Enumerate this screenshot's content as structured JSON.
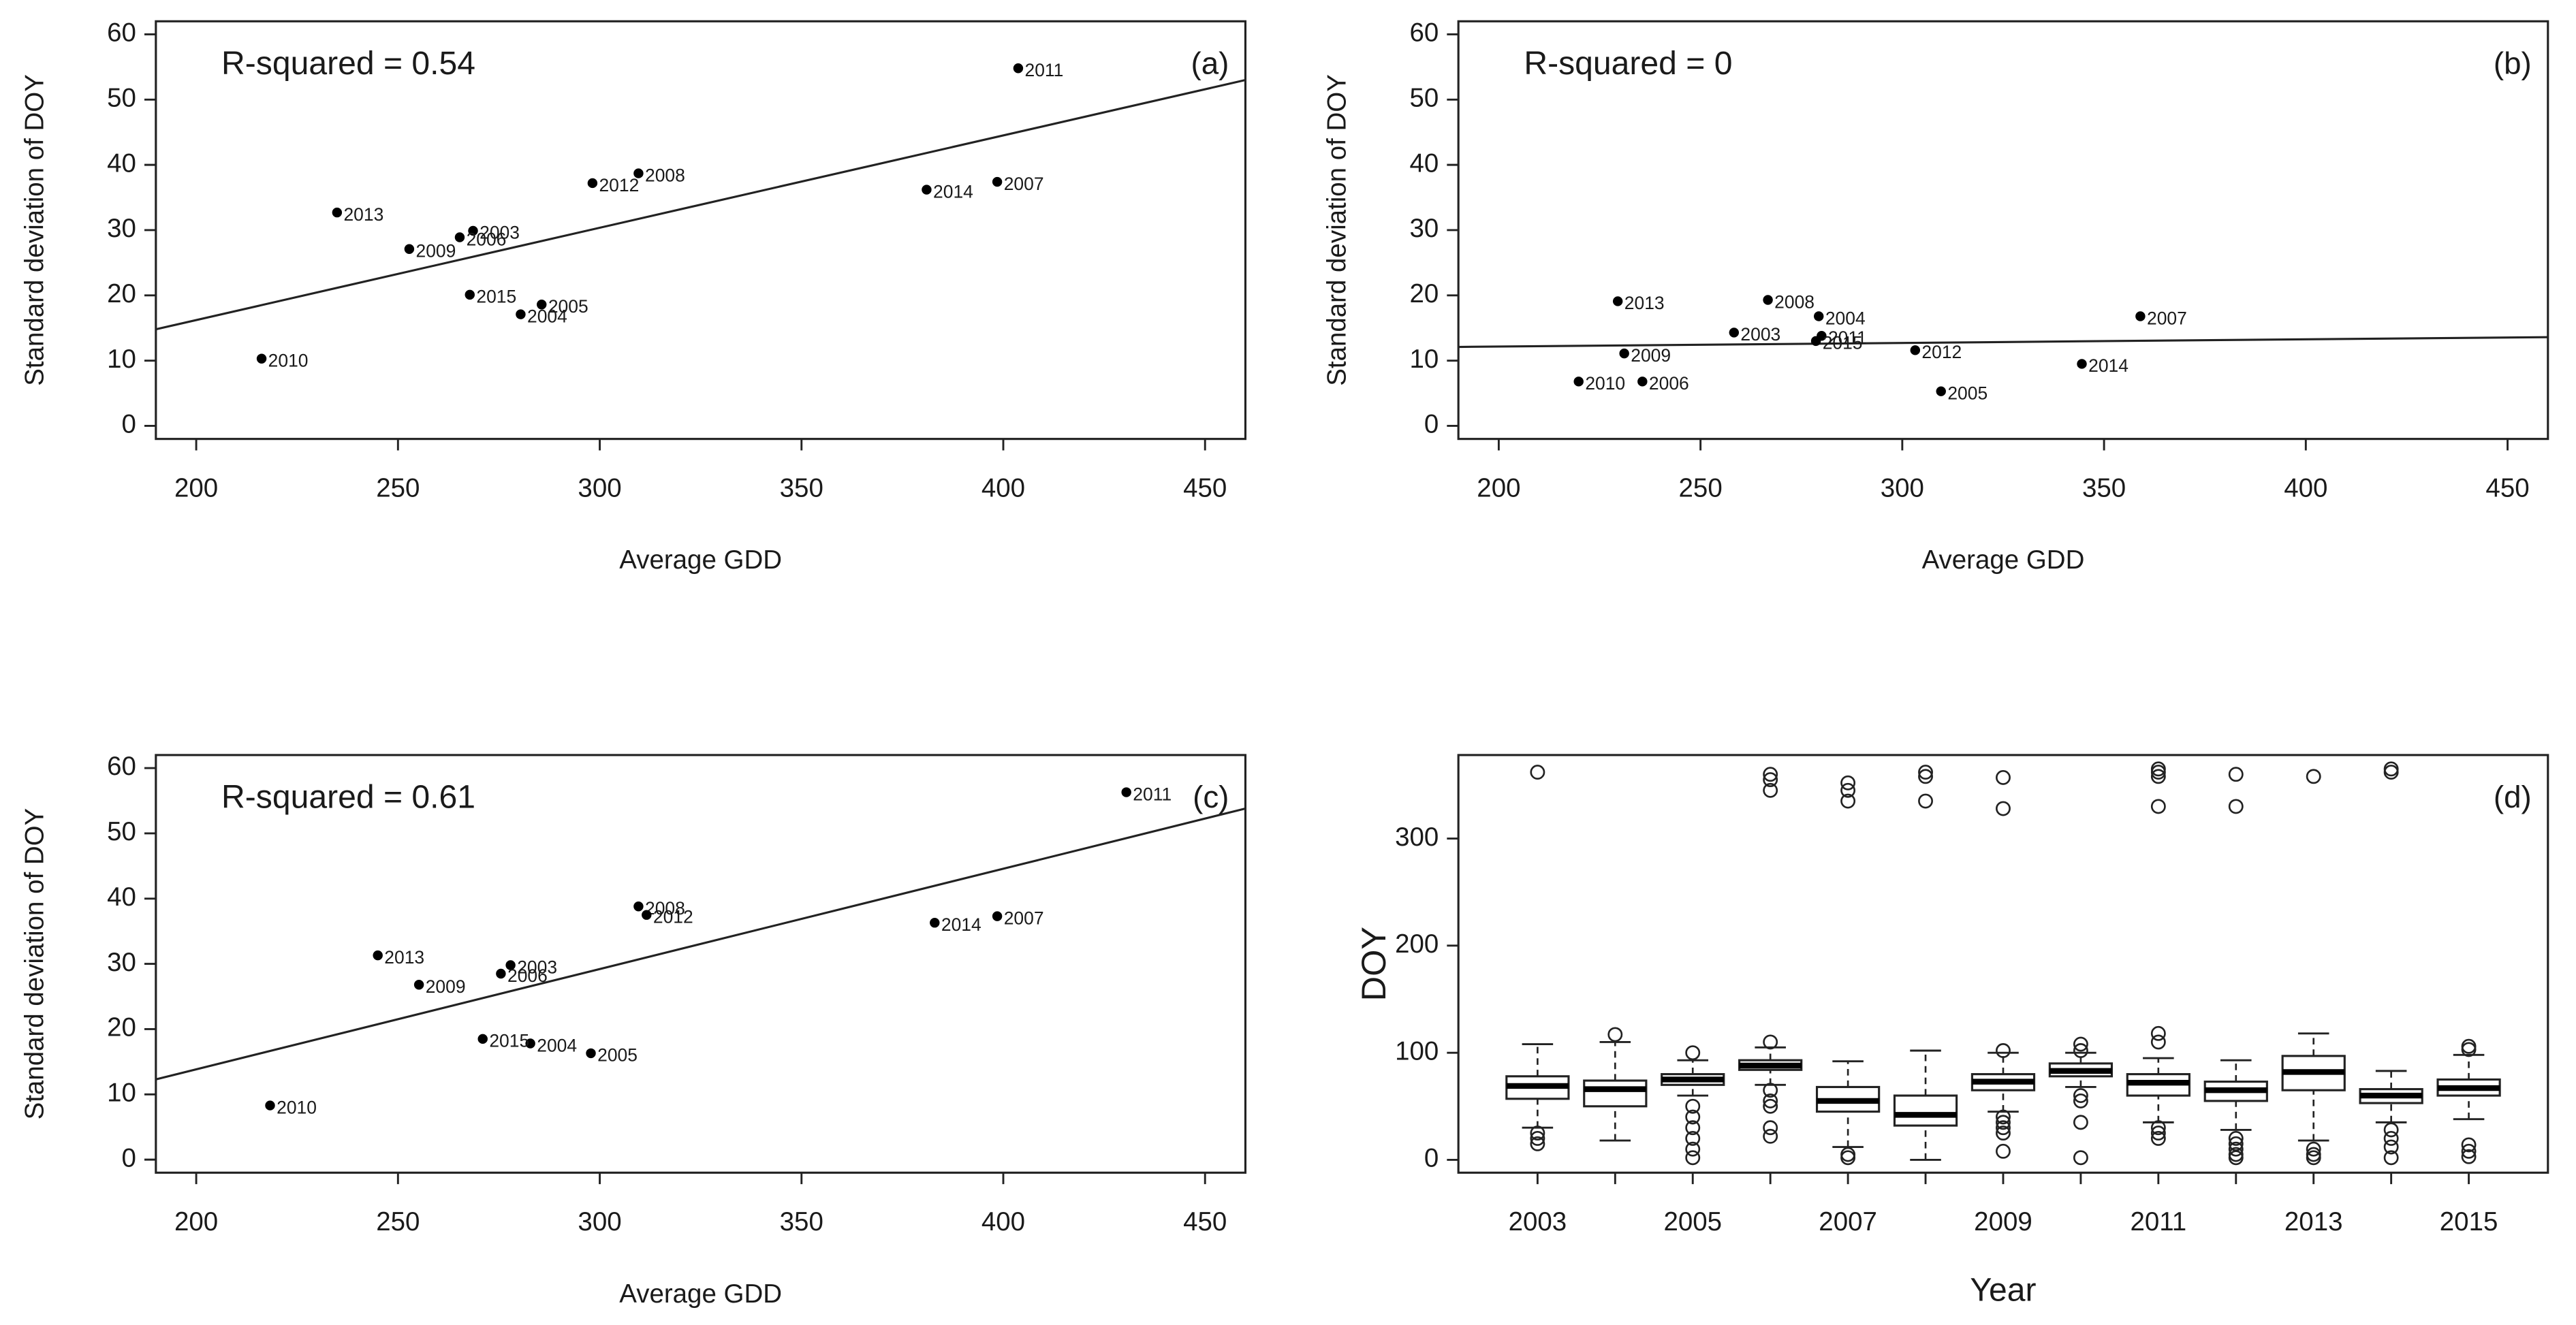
{
  "chart_data": [
    {
      "type": "scatter",
      "annotation": "R-squared = 0.54",
      "panel_label": "(a)",
      "x_label": "Average GDD",
      "y_label": "Standard deviation of DOY",
      "x": [
        268.6,
        280.4,
        285.6,
        265.3,
        398.5,
        309.6,
        252.8,
        216.2,
        403.7,
        298.2,
        234.9,
        381,
        267.8
      ],
      "values": [
        29.9,
        17.1,
        18.6,
        28.9,
        37.4,
        38.7,
        27.1,
        10.3,
        54.8,
        37.2,
        32.7,
        36.2,
        20.1
      ],
      "point_labels": [
        "2003",
        "2004",
        "2005",
        "2006",
        "2007",
        "2008",
        "2009",
        "2010",
        "2011",
        "2012",
        "2013",
        "2014",
        "2015"
      ],
      "fit": {
        "x": [
          190,
          460
        ],
        "values": [
          14.8,
          53
        ]
      },
      "color": "#000000",
      "xlim": [
        190,
        460
      ],
      "ylim": [
        -2,
        62
      ],
      "xticks": [
        200,
        250,
        300,
        350,
        400,
        450
      ],
      "yticks": [
        0,
        10,
        20,
        30,
        40,
        50,
        60
      ]
    },
    {
      "type": "scatter",
      "annotation": "R-squared = 0",
      "panel_label": "(b)",
      "x_label": "Average GDD",
      "y_label": "Standard deviation of DOY",
      "x": [
        258.3,
        279.3,
        309.6,
        235.6,
        359,
        266.7,
        231.1,
        219.8,
        280,
        303.2,
        229.5,
        344.5,
        278.6
      ],
      "values": [
        14.3,
        16.8,
        5.3,
        6.8,
        16.8,
        19.3,
        11.1,
        6.8,
        13.8,
        11.6,
        19.1,
        9.5,
        13
      ],
      "point_labels": [
        "2003",
        "2004",
        "2005",
        "2006",
        "2007",
        "2008",
        "2009",
        "2010",
        "2011",
        "2012",
        "2013",
        "2014",
        "2015"
      ],
      "fit": {
        "x": [
          190,
          460
        ],
        "values": [
          12.1,
          13.6
        ]
      },
      "color": "#000000",
      "xlim": [
        190,
        460
      ],
      "ylim": [
        -2,
        62
      ],
      "xticks": [
        200,
        250,
        300,
        350,
        400,
        450
      ],
      "yticks": [
        0,
        10,
        20,
        30,
        40,
        50,
        60
      ]
    },
    {
      "type": "scatter",
      "annotation": "R-squared = 0.61",
      "panel_label": "(c)",
      "x_label": "Average GDD",
      "y_label": "Standard deviation of DOY",
      "x": [
        277.9,
        282.8,
        297.8,
        275.5,
        398.5,
        309.6,
        255.2,
        218.3,
        430.5,
        311.6,
        245,
        383,
        271
      ],
      "values": [
        29.8,
        17.8,
        16.3,
        28.5,
        37.3,
        38.8,
        26.8,
        8.3,
        56.3,
        37.5,
        31.3,
        36.3,
        18.5
      ],
      "point_labels": [
        "2003",
        "2004",
        "2005",
        "2006",
        "2007",
        "2008",
        "2009",
        "2010",
        "2011",
        "2012",
        "2013",
        "2014",
        "2015"
      ],
      "fit": {
        "x": [
          190,
          460
        ],
        "values": [
          12.3,
          53.8
        ]
      },
      "color": "#000000",
      "xlim": [
        190,
        460
      ],
      "ylim": [
        -2,
        62
      ],
      "xticks": [
        200,
        250,
        300,
        350,
        400,
        450
      ],
      "yticks": [
        0,
        10,
        20,
        30,
        40,
        50,
        60
      ]
    },
    {
      "type": "box",
      "panel_label": "(d)",
      "x_label": "Year",
      "y_label": "DOY",
      "categories": [
        "2003",
        null,
        "2005",
        null,
        "2007",
        null,
        "2009",
        null,
        "2011",
        null,
        "2013",
        null,
        "2015"
      ],
      "boxes": [
        {
          "whisker_low": 30,
          "q1": 57,
          "median": 69,
          "q3": 78,
          "whisker_high": 108,
          "outliers": [
            362,
            25,
            20,
            15
          ]
        },
        {
          "whisker_low": 18,
          "q1": 50,
          "median": 66,
          "q3": 74,
          "whisker_high": 110,
          "outliers": [
            117
          ]
        },
        {
          "whisker_low": 60,
          "q1": 70,
          "median": 75,
          "q3": 80,
          "whisker_high": 93,
          "outliers": [
            100,
            50,
            40,
            30,
            20,
            10,
            2
          ]
        },
        {
          "whisker_low": 70,
          "q1": 84,
          "median": 88,
          "q3": 93,
          "whisker_high": 105,
          "outliers": [
            360,
            355,
            345,
            110,
            65,
            55,
            50,
            30,
            22
          ]
        },
        {
          "whisker_low": 12,
          "q1": 45,
          "median": 55,
          "q3": 68,
          "whisker_high": 92,
          "outliers": [
            352,
            345,
            335,
            5,
            2
          ]
        },
        {
          "whisker_low": 0,
          "q1": 32,
          "median": 42,
          "q3": 60,
          "whisker_high": 102,
          "outliers": [
            362,
            358,
            335
          ]
        },
        {
          "whisker_low": 45,
          "q1": 65,
          "median": 73,
          "q3": 80,
          "whisker_high": 100,
          "outliers": [
            357,
            328,
            102,
            40,
            35,
            30,
            25,
            8
          ]
        },
        {
          "whisker_low": 68,
          "q1": 78,
          "median": 83,
          "q3": 90,
          "whisker_high": 100,
          "outliers": [
            108,
            102,
            60,
            55,
            35,
            2
          ]
        },
        {
          "whisker_low": 35,
          "q1": 60,
          "median": 72,
          "q3": 80,
          "whisker_high": 95,
          "outliers": [
            365,
            362,
            358,
            330,
            118,
            110,
            30,
            25,
            20
          ]
        },
        {
          "whisker_low": 28,
          "q1": 55,
          "median": 65,
          "q3": 73,
          "whisker_high": 93,
          "outliers": [
            360,
            330,
            20,
            15,
            10,
            5,
            2
          ]
        },
        {
          "whisker_low": 18,
          "q1": 65,
          "median": 82,
          "q3": 97,
          "whisker_high": 118,
          "outliers": [
            358,
            10,
            5,
            2
          ]
        },
        {
          "whisker_low": 35,
          "q1": 53,
          "median": 60,
          "q3": 66,
          "whisker_high": 83,
          "outliers": [
            365,
            362,
            28,
            20,
            12,
            2
          ]
        },
        {
          "whisker_low": 38,
          "q1": 60,
          "median": 67,
          "q3": 75,
          "whisker_high": 98,
          "outliers": [
            106,
            103,
            14,
            8,
            3
          ]
        }
      ],
      "color": "#000000",
      "ylim": [
        -12,
        378
      ],
      "yticks": [
        0,
        100,
        200,
        300
      ]
    }
  ]
}
